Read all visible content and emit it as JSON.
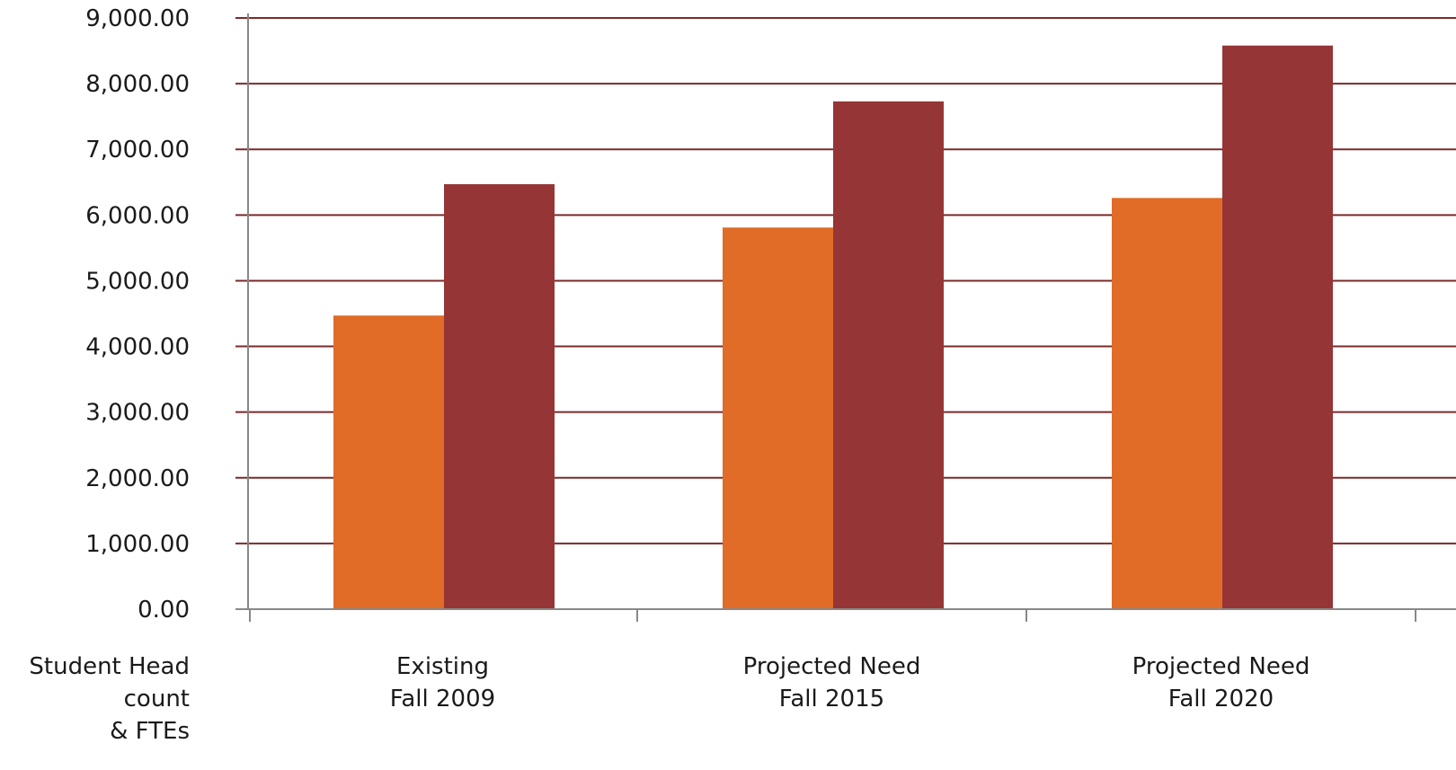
{
  "chart_data": {
    "type": "bar",
    "categories": [
      [
        "Existing",
        "Fall 2009"
      ],
      [
        "Projected Need",
        "Fall 2015"
      ],
      [
        "Projected Need",
        "Fall 2020"
      ]
    ],
    "series": [
      {
        "values": [
          4470,
          5810,
          6260
        ],
        "color": "#e06c27"
      },
      {
        "values": [
          6470,
          7730,
          8580
        ],
        "color": "#963536"
      }
    ],
    "xlabel": [
      "Student Head",
      "count",
      "& FTEs"
    ],
    "ylabel": "",
    "ylim": [
      0,
      9000
    ],
    "yticks": [
      0,
      1000,
      2000,
      3000,
      4000,
      5000,
      6000,
      7000,
      8000,
      9000
    ],
    "ytick_labels": [
      "0.00",
      "1,000.00",
      "2,000.00",
      "3,000.00",
      "4,000.00",
      "5,000.00",
      "6,000.00",
      "7,000.00",
      "8,000.00",
      "9,000.00"
    ],
    "grid": true,
    "legend": "none",
    "colors": {
      "grid": "#7a2a2b",
      "axis": "#888888",
      "text": "#1a1a1a"
    }
  }
}
